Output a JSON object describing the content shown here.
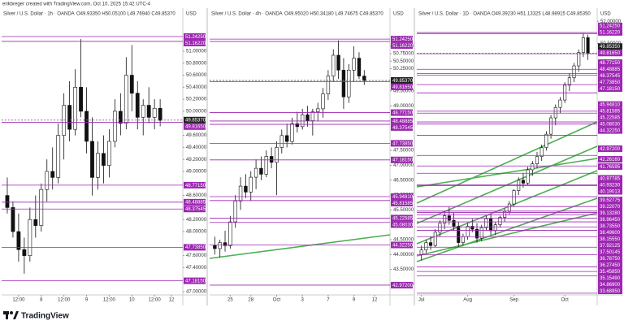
{
  "header": {
    "caption": "erikbreger created with TradingView.com, Oct 10, 2025 15:42 UTC-4"
  },
  "footer": {
    "brand": "TradingView"
  },
  "chart_data": [
    {
      "type": "candlestick",
      "title": "Silver / U.S. Dollar · 1h · OANDA",
      "ohlc_text": "O49.93350 H50.05100 L49.76940 C49.85370",
      "currency": "USD",
      "grid": false,
      "up_color": "#ffffff",
      "down_color": "#111111",
      "level_color": "#9c27b0",
      "xlim": [
        -1,
        31
      ],
      "ylim": [
        46.96,
        51.58
      ],
      "xticks": [
        {
          "value": 2,
          "label": "12:00"
        },
        {
          "value": 6,
          "label": "8"
        },
        {
          "value": 10,
          "label": "12:00"
        },
        {
          "value": 14,
          "label": "9"
        },
        {
          "value": 18,
          "label": "12:00"
        },
        {
          "value": 22,
          "label": "10"
        },
        {
          "value": 26,
          "label": "12:00"
        },
        {
          "value": 29,
          "label": "12"
        }
      ],
      "yticks": [
        {
          "value": 51,
          "label": "51.00000"
        },
        {
          "value": 50.8,
          "label": "50.80000"
        },
        {
          "value": 50.6,
          "label": "50.60000"
        },
        {
          "value": 50.4,
          "label": "50.40000"
        },
        {
          "value": 50.2,
          "label": "50.20000"
        },
        {
          "value": 50,
          "label": "50.00000"
        },
        {
          "value": 49.6,
          "label": "49.60000"
        },
        {
          "value": 49.4,
          "label": "49.40000"
        },
        {
          "value": 49.2,
          "label": "49.20000"
        },
        {
          "value": 49,
          "label": "49.00000"
        },
        {
          "value": 48.6,
          "label": "48.60000"
        },
        {
          "value": 48.2,
          "label": "48.20000"
        },
        {
          "value": 48,
          "label": "48.00000"
        },
        {
          "value": 47.6,
          "label": "47.60000"
        },
        {
          "value": 47.4,
          "label": "47.40000"
        },
        {
          "value": 47,
          "label": "47.00000"
        }
      ],
      "last_price": {
        "value": 49.8537,
        "label": "49.85370"
      },
      "levels": [
        {
          "value": 51.2425,
          "label": "51.24250"
        },
        {
          "value": 51.1622,
          "label": "51.16220"
        },
        {
          "value": 49.8165,
          "label": "49.81650"
        },
        {
          "value": 48.7715,
          "label": "48.77150"
        },
        {
          "value": 48.48885,
          "label": "48.48885"
        },
        {
          "value": 48.37545,
          "label": "48.37545"
        },
        {
          "value": 47.7385,
          "label": "47.73850"
        },
        {
          "value": 47.1815,
          "label": "47.18150"
        }
      ],
      "ohlc": [
        [
          48.6,
          48.9,
          48.3,
          48.4
        ],
        [
          48.4,
          48.5,
          47.9,
          48.0
        ],
        [
          48.0,
          48.3,
          47.5,
          47.7
        ],
        [
          47.7,
          47.9,
          47.3,
          47.6
        ],
        [
          47.6,
          48.4,
          47.5,
          48.2
        ],
        [
          48.2,
          48.6,
          47.9,
          48.1
        ],
        [
          48.1,
          48.8,
          48.0,
          48.7
        ],
        [
          48.7,
          49.2,
          48.5,
          49.0
        ],
        [
          49.0,
          49.4,
          48.7,
          48.9
        ],
        [
          48.9,
          49.8,
          48.8,
          49.6
        ],
        [
          49.6,
          50.3,
          49.2,
          50.1
        ],
        [
          50.1,
          50.5,
          49.5,
          49.7
        ],
        [
          49.7,
          50.7,
          49.6,
          50.4
        ],
        [
          50.4,
          51.2,
          49.9,
          50.0
        ],
        [
          50.0,
          50.4,
          49.3,
          49.5
        ],
        [
          49.5,
          49.9,
          48.6,
          48.9
        ],
        [
          48.9,
          49.5,
          48.7,
          49.3
        ],
        [
          49.3,
          49.6,
          48.8,
          49.1
        ],
        [
          49.1,
          49.7,
          48.9,
          49.5
        ],
        [
          49.5,
          50.2,
          49.4,
          50.0
        ],
        [
          50.0,
          50.3,
          49.6,
          49.8
        ],
        [
          49.8,
          50.9,
          49.7,
          50.6
        ],
        [
          50.6,
          51.1,
          50.0,
          50.3
        ],
        [
          50.3,
          50.5,
          49.7,
          49.9
        ],
        [
          49.9,
          50.2,
          49.6,
          50.1
        ],
        [
          50.1,
          50.4,
          49.8,
          49.9
        ],
        [
          49.9,
          50.2,
          49.7,
          50.05
        ],
        [
          50.05,
          50.2,
          49.75,
          49.85
        ]
      ]
    },
    {
      "type": "candlestick",
      "title": "Silver / U.S. Dollar · 4h · OANDA",
      "ohlc_text": "O49.95020 H50.34180 L49.74675 C49.85370",
      "currency": "USD",
      "grid": false,
      "up_color": "#ffffff",
      "down_color": "#111111",
      "level_color": "#9c27b0",
      "xlim": [
        -1,
        34
      ],
      "ylim": [
        42.67,
        52.01
      ],
      "xticks": [
        {
          "value": 3,
          "label": "25"
        },
        {
          "value": 7,
          "label": "28"
        },
        {
          "value": 12,
          "label": "Oct"
        },
        {
          "value": 17,
          "label": "3"
        },
        {
          "value": 22,
          "label": "7"
        },
        {
          "value": 27,
          "label": "9"
        },
        {
          "value": 31,
          "label": "12"
        }
      ],
      "yticks": [
        {
          "value": 51,
          "label": "51.00000"
        },
        {
          "value": 50.75,
          "label": "50.75000"
        },
        {
          "value": 50.5,
          "label": "50.50000"
        },
        {
          "value": 50.25,
          "label": "50.25000"
        },
        {
          "value": 49.5,
          "label": "49.50000"
        },
        {
          "value": 49,
          "label": "49.00000"
        },
        {
          "value": 47.5,
          "label": "47.50000"
        },
        {
          "value": 47,
          "label": "47.00000"
        },
        {
          "value": 46.5,
          "label": "46.50000"
        },
        {
          "value": 46,
          "label": "46.00000"
        },
        {
          "value": 45.5,
          "label": "45.50000"
        },
        {
          "value": 44.5,
          "label": "44.50000"
        },
        {
          "value": 44,
          "label": "44.00000"
        },
        {
          "value": 43.5,
          "label": "43.50000"
        },
        {
          "value": 43,
          "label": "43.00000"
        }
      ],
      "last_price": {
        "value": 49.8537,
        "label": "49.85370"
      },
      "levels": [
        {
          "value": 51.2425,
          "label": "51.24250"
        },
        {
          "value": 51.1622,
          "label": "51.16220"
        },
        {
          "value": 49.8165,
          "label": "49.81650"
        },
        {
          "value": 48.7715,
          "label": "48.77150"
        },
        {
          "value": 48.48885,
          "label": "48.48885"
        },
        {
          "value": 48.37545,
          "label": "48.37545"
        },
        {
          "value": 47.7385,
          "label": "47.73850"
        },
        {
          "value": 47.1815,
          "label": "47.18150"
        },
        {
          "value": 45.9481,
          "label": "45.94810"
        },
        {
          "value": 45.81585,
          "label": "45.81585"
        },
        {
          "value": 45.22585,
          "label": "45.22585"
        },
        {
          "value": 45.0803,
          "label": "45.08030"
        },
        {
          "value": 44.3225,
          "label": "44.32250"
        },
        {
          "value": 42.972,
          "label": "42.97200"
        }
      ],
      "ohlc": [
        [
          44.3,
          44.6,
          44.0,
          44.2
        ],
        [
          44.2,
          44.5,
          43.9,
          44.4
        ],
        [
          44.4,
          44.8,
          44.1,
          44.3
        ],
        [
          44.3,
          45.3,
          44.2,
          45.1
        ],
        [
          45.1,
          46.0,
          44.9,
          45.8
        ],
        [
          45.8,
          46.6,
          45.5,
          46.3
        ],
        [
          46.3,
          46.7,
          45.9,
          46.1
        ],
        [
          46.1,
          46.8,
          45.8,
          46.6
        ],
        [
          46.6,
          47.2,
          46.2,
          46.9
        ],
        [
          46.9,
          47.3,
          46.5,
          46.7
        ],
        [
          46.7,
          47.5,
          46.6,
          47.3
        ],
        [
          47.3,
          47.6,
          46.9,
          47.1
        ],
        [
          47.1,
          47.8,
          46.0,
          47.6
        ],
        [
          47.6,
          48.2,
          47.4,
          48.0
        ],
        [
          48.0,
          48.4,
          47.6,
          47.8
        ],
        [
          47.8,
          48.6,
          47.7,
          48.4
        ],
        [
          48.4,
          48.8,
          48.1,
          48.3
        ],
        [
          48.3,
          48.9,
          48.2,
          48.7
        ],
        [
          48.7,
          49.0,
          48.3,
          48.5
        ],
        [
          48.5,
          48.9,
          48.0,
          48.8
        ],
        [
          48.8,
          49.1,
          48.5,
          48.9
        ],
        [
          48.9,
          49.6,
          48.6,
          49.4
        ],
        [
          49.4,
          50.2,
          49.2,
          50.0
        ],
        [
          50.0,
          50.9,
          49.8,
          50.7
        ],
        [
          50.7,
          51.2,
          49.9,
          50.2
        ],
        [
          50.2,
          50.6,
          48.9,
          49.3
        ],
        [
          49.3,
          50.4,
          49.1,
          50.2
        ],
        [
          50.2,
          51.0,
          49.8,
          50.6
        ],
        [
          50.6,
          50.8,
          49.9,
          50.0
        ],
        [
          50.0,
          50.2,
          49.7,
          49.85
        ]
      ]
    },
    {
      "type": "candlestick",
      "title": "Silver / U.S. Dollar · 1D · OANDA",
      "ohlc_text": "O49.39230 H51.13325 L48.98915 C49.85350",
      "currency": "USD",
      "grid": false,
      "up_color": "#ffffff",
      "down_color": "#111111",
      "level_color": "#9c27b0",
      "xlim": [
        -1,
        38
      ],
      "ylim": [
        33.63,
        52.34
      ],
      "xticks": [
        {
          "value": 0,
          "label": "Jul"
        },
        {
          "value": 10,
          "label": "Aug"
        },
        {
          "value": 20,
          "label": "Sep"
        },
        {
          "value": 31,
          "label": "Oct"
        }
      ],
      "yticks": [
        {
          "value": 52,
          "label": "52.00000"
        },
        {
          "value": 50.5,
          "label": "50.50000"
        }
      ],
      "last_price": {
        "value": 49.8535,
        "label": "49.85350"
      },
      "levels": [
        {
          "value": 51.2425,
          "label": "51.24250"
        },
        {
          "value": 51.1622,
          "label": "51.16220"
        },
        {
          "value": 49.8165,
          "label": "49.81650"
        },
        {
          "value": 48.7715,
          "label": "48.77150"
        },
        {
          "value": 48.48885,
          "label": "48.48885"
        },
        {
          "value": 48.37545,
          "label": "48.37545"
        },
        {
          "value": 47.7385,
          "label": "47.73850"
        },
        {
          "value": 47.1815,
          "label": "47.18150"
        },
        {
          "value": 45.9481,
          "label": "45.94810"
        },
        {
          "value": 45.81585,
          "label": "45.81585"
        },
        {
          "value": 45.22585,
          "label": "45.22585"
        },
        {
          "value": 45.0803,
          "label": "45.08030"
        },
        {
          "value": 44.3225,
          "label": "44.32250"
        },
        {
          "value": 42.972,
          "label": "42.97200"
        },
        {
          "value": 42.2616,
          "label": "42.26160"
        },
        {
          "value": 41.76595,
          "label": "41.76595"
        },
        {
          "value": 40.97785,
          "label": "40.97785"
        },
        {
          "value": 40.9323,
          "label": "40.93230"
        },
        {
          "value": 40.19013,
          "label": "40.19013"
        },
        {
          "value": 39.52775,
          "label": "39.52775"
        },
        {
          "value": 39.2207,
          "label": "39.22070"
        },
        {
          "value": 39.1328,
          "label": "39.13280"
        },
        {
          "value": 38.9645,
          "label": "38.96450"
        },
        {
          "value": 38.7355,
          "label": "38.73550"
        },
        {
          "value": 38.496,
          "label": "38.49600"
        },
        {
          "value": 38.1555,
          "label": "38.15550"
        },
        {
          "value": 37.92125,
          "label": "37.92125"
        },
        {
          "value": 37.50145,
          "label": "37.50145"
        },
        {
          "value": 36.7875,
          "label": "36.78750"
        },
        {
          "value": 36.2745,
          "label": "36.27450"
        },
        {
          "value": 35.4585,
          "label": "35.45850"
        },
        {
          "value": 35.1549,
          "label": "35.15490"
        },
        {
          "value": 34.869,
          "label": "34.86900"
        },
        {
          "value": 33.6895,
          "label": "33.68950"
        }
      ],
      "ohlc": [
        [
          36.3,
          36.9,
          35.9,
          36.6
        ],
        [
          36.6,
          37.3,
          36.4,
          37.1
        ],
        [
          37.1,
          37.5,
          36.6,
          36.9
        ],
        [
          36.9,
          38.0,
          36.8,
          37.8
        ],
        [
          37.8,
          38.6,
          37.5,
          38.4
        ],
        [
          38.4,
          39.2,
          38.0,
          38.9
        ],
        [
          38.9,
          39.5,
          38.3,
          38.6
        ],
        [
          38.6,
          39.1,
          37.9,
          38.2
        ],
        [
          38.2,
          38.5,
          36.8,
          37.1
        ],
        [
          37.1,
          37.7,
          36.9,
          37.5
        ],
        [
          37.5,
          38.4,
          37.3,
          38.2
        ],
        [
          38.2,
          38.7,
          37.8,
          38.0
        ],
        [
          38.0,
          38.4,
          37.1,
          37.4
        ],
        [
          37.4,
          38.3,
          37.2,
          38.1
        ],
        [
          38.1,
          38.9,
          37.9,
          38.7
        ],
        [
          38.7,
          39.0,
          37.6,
          37.9
        ],
        [
          37.9,
          38.5,
          37.6,
          38.3
        ],
        [
          38.3,
          38.9,
          38.1,
          38.8
        ],
        [
          38.8,
          39.4,
          38.5,
          39.2
        ],
        [
          39.2,
          39.9,
          39.0,
          39.7
        ],
        [
          39.7,
          40.7,
          39.5,
          40.6
        ],
        [
          40.6,
          41.5,
          40.3,
          41.3
        ],
        [
          41.3,
          41.8,
          40.8,
          41.1
        ],
        [
          41.1,
          42.2,
          41.0,
          42.0
        ],
        [
          42.0,
          42.6,
          41.6,
          42.4
        ],
        [
          42.4,
          43.2,
          42.1,
          42.9
        ],
        [
          42.9,
          43.7,
          42.6,
          43.5
        ],
        [
          43.5,
          44.6,
          43.3,
          44.4
        ],
        [
          44.4,
          45.7,
          44.1,
          45.5
        ],
        [
          45.5,
          46.4,
          45.0,
          46.2
        ],
        [
          46.2,
          46.9,
          45.8,
          46.7
        ],
        [
          46.7,
          47.9,
          46.5,
          47.7
        ],
        [
          47.7,
          48.5,
          47.3,
          48.2
        ],
        [
          48.2,
          49.2,
          47.9,
          49.0
        ],
        [
          49.0,
          50.1,
          48.6,
          49.9
        ],
        [
          49.9,
          51.2,
          49.6,
          50.9
        ],
        [
          50.9,
          51.1,
          49.4,
          49.85
        ]
      ]
    }
  ]
}
